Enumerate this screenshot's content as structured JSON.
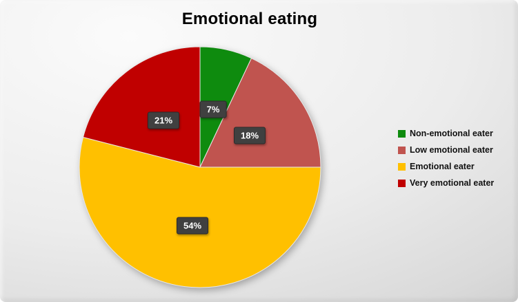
{
  "chart_data": {
    "type": "pie",
    "title": "Emotional eating",
    "legend_position": "right",
    "start_angle_deg": 0,
    "direction": "clockwise",
    "label_style": "dark-box-percent",
    "slices": [
      {
        "label": "Non-emotional eater",
        "value": 7,
        "display": "7%",
        "color": "#0e8b0e"
      },
      {
        "label": "Low emotional eater",
        "value": 18,
        "display": "18%",
        "color": "#c0544f"
      },
      {
        "label": "Emotional eater",
        "value": 54,
        "display": "54%",
        "color": "#ffc000"
      },
      {
        "label": "Very emotional eater",
        "value": 21,
        "display": "21%",
        "color": "#c00000"
      }
    ]
  }
}
